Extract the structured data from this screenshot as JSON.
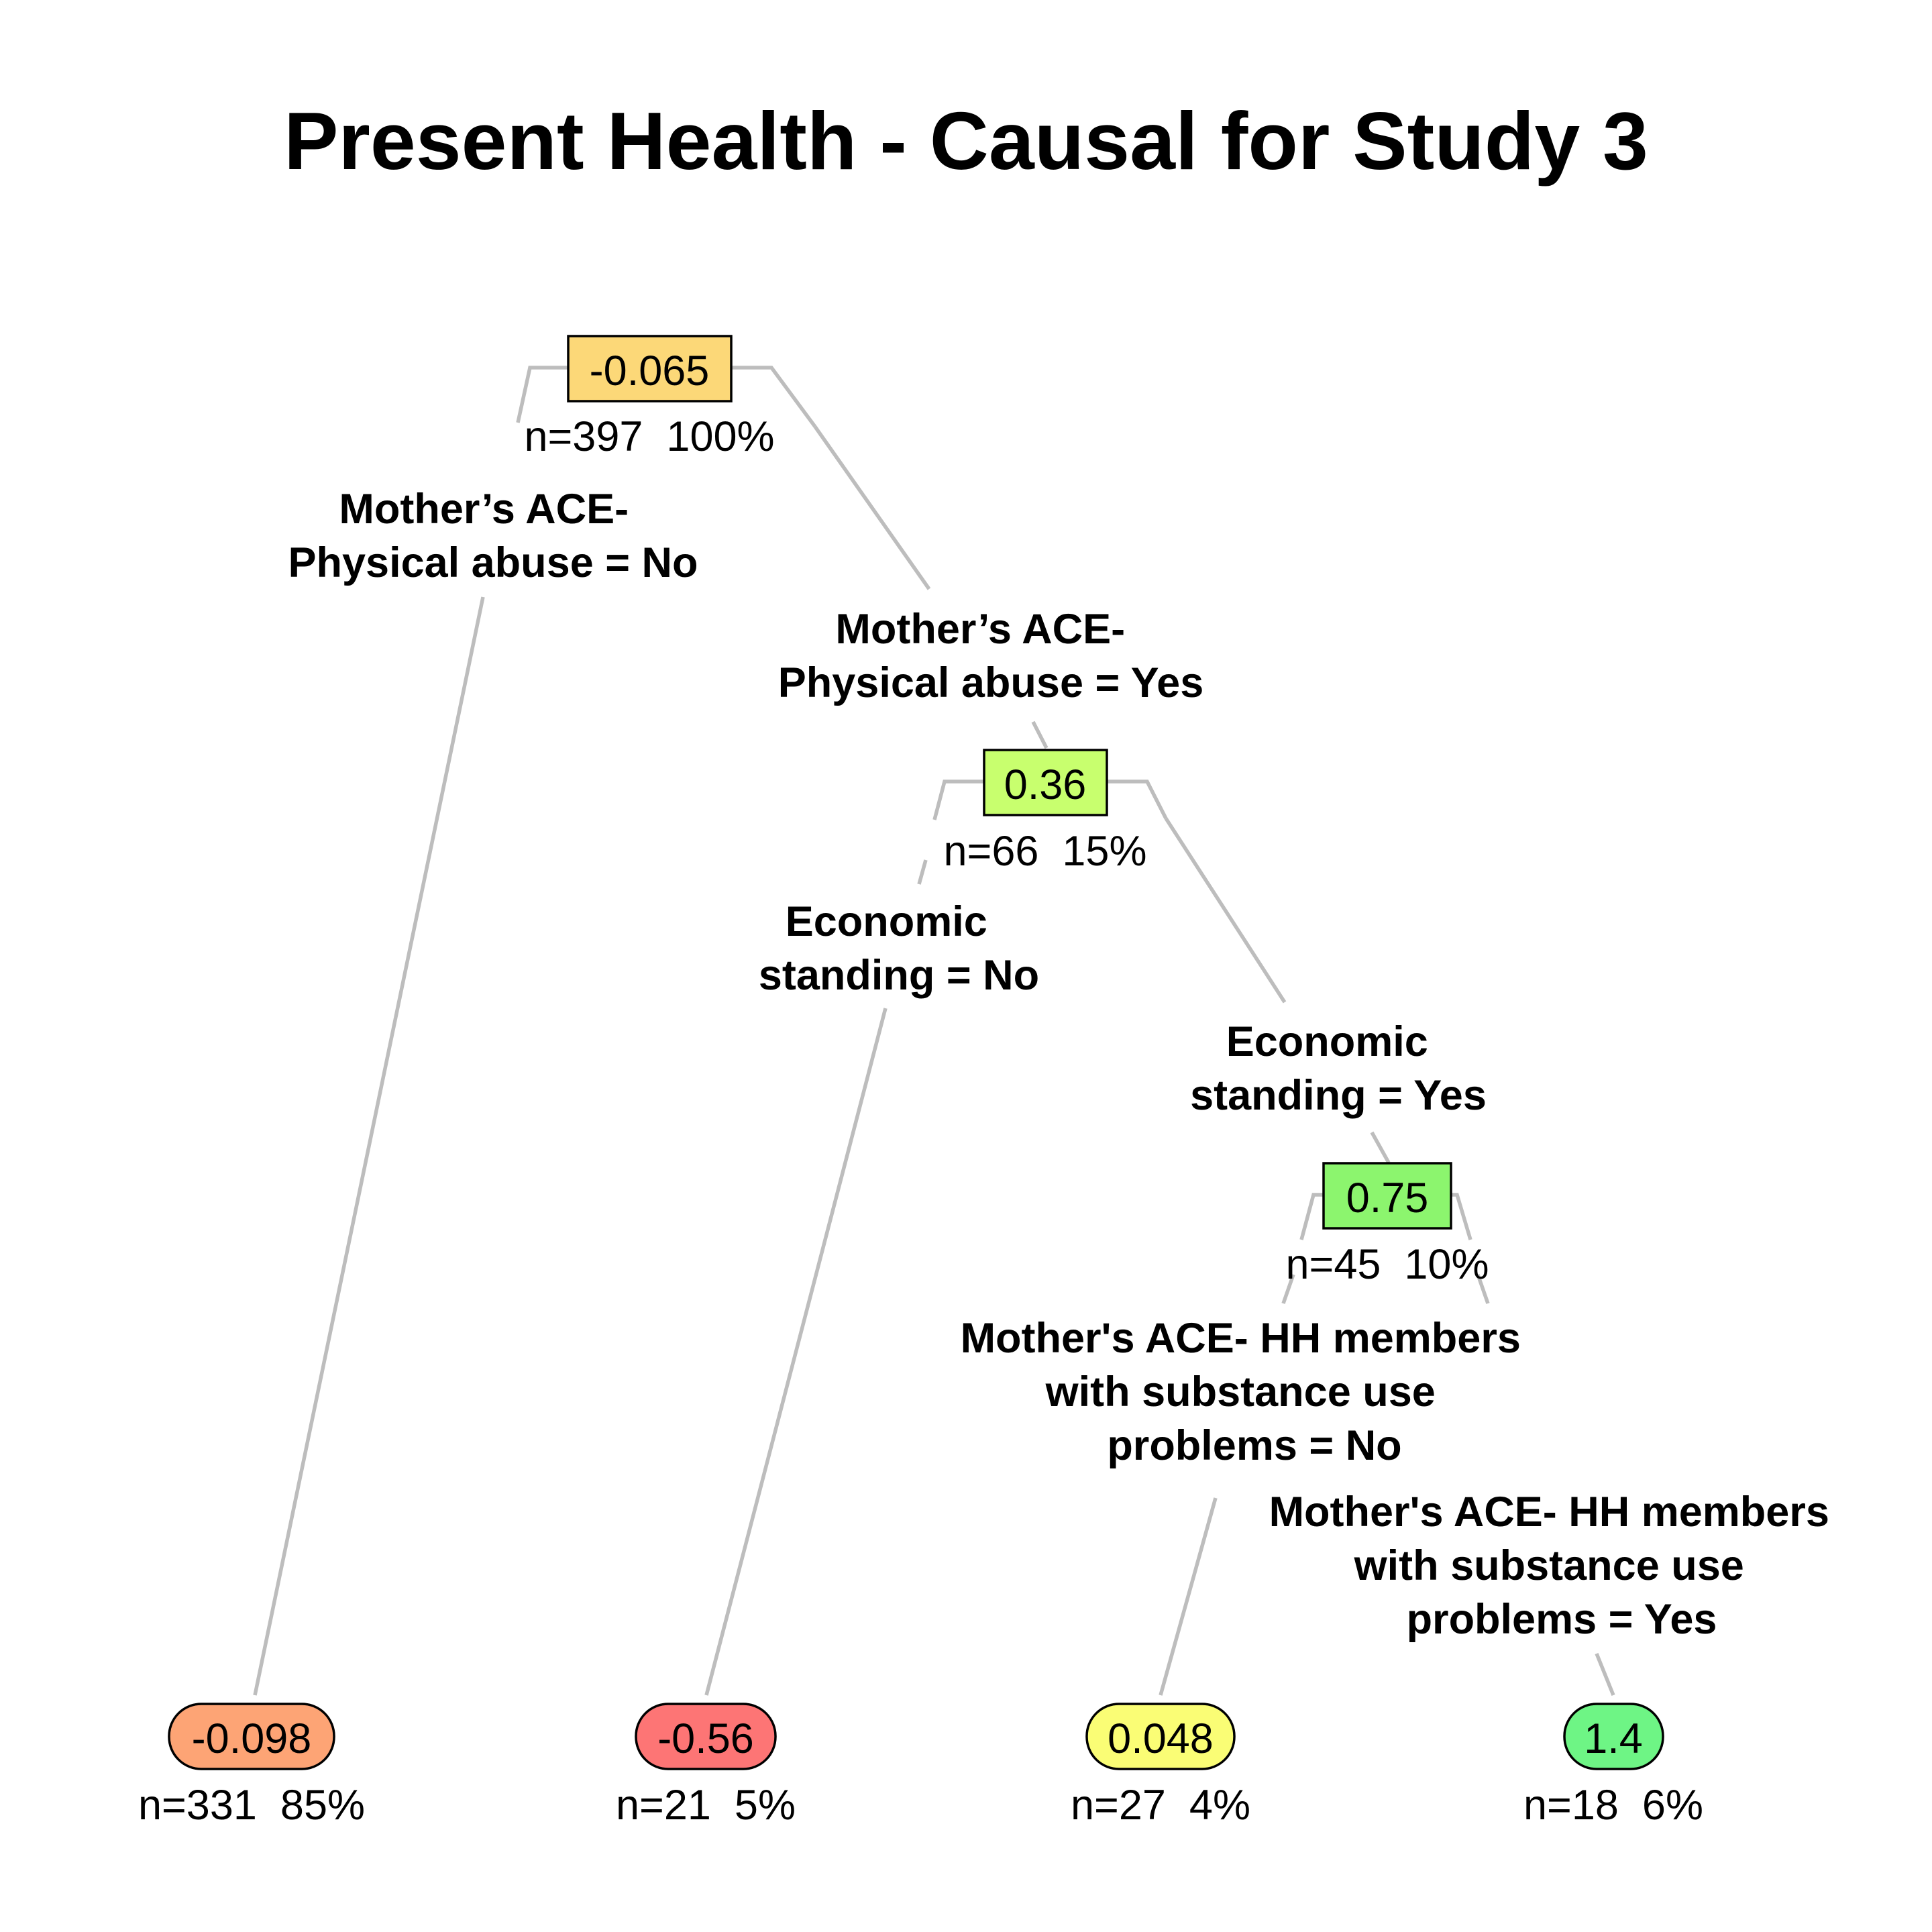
{
  "title": "Present Health - Causal for Study 3",
  "tree": {
    "nodes": [
      {
        "id": "n1",
        "value": "-0.065",
        "stats": "n=397  100%",
        "fill": "#fcd878",
        "leaf": false
      },
      {
        "id": "n2",
        "value": "0.36",
        "stats": "n=66  15%",
        "fill": "#c8ff6e",
        "leaf": false
      },
      {
        "id": "n3",
        "value": "0.75",
        "stats": "n=45  10%",
        "fill": "#8cf56e",
        "leaf": false
      },
      {
        "id": "l1",
        "value": "-0.098",
        "stats": "n=331  85%",
        "fill": "#fda475",
        "leaf": true
      },
      {
        "id": "l2",
        "value": "-0.56",
        "stats": "n=21  5%",
        "fill": "#fd7575",
        "leaf": true
      },
      {
        "id": "l3",
        "value": "0.048",
        "stats": "n=27  4%",
        "fill": "#fafd75",
        "leaf": true
      },
      {
        "id": "l4",
        "value": "1.4",
        "stats": "n=18  6%",
        "fill": "#6ef585",
        "leaf": true
      }
    ],
    "splits": [
      {
        "id": "s1",
        "lines": [
          "Mother’s ACE-",
          "Physical abuse = No"
        ]
      },
      {
        "id": "s2",
        "lines": [
          "Mother’s ACE-",
          "Physical abuse = Yes"
        ]
      },
      {
        "id": "s3",
        "lines": [
          "Economic",
          "standing = No"
        ]
      },
      {
        "id": "s4",
        "lines": [
          "Economic",
          "standing = Yes"
        ]
      },
      {
        "id": "s5",
        "lines": [
          "Mother's ACE- HH members",
          "with substance use",
          "problems = No"
        ]
      },
      {
        "id": "s6",
        "lines": [
          "Mother's ACE- HH members",
          "with substance use",
          "problems = Yes"
        ]
      }
    ],
    "edge_color": "#bdbdbd"
  }
}
